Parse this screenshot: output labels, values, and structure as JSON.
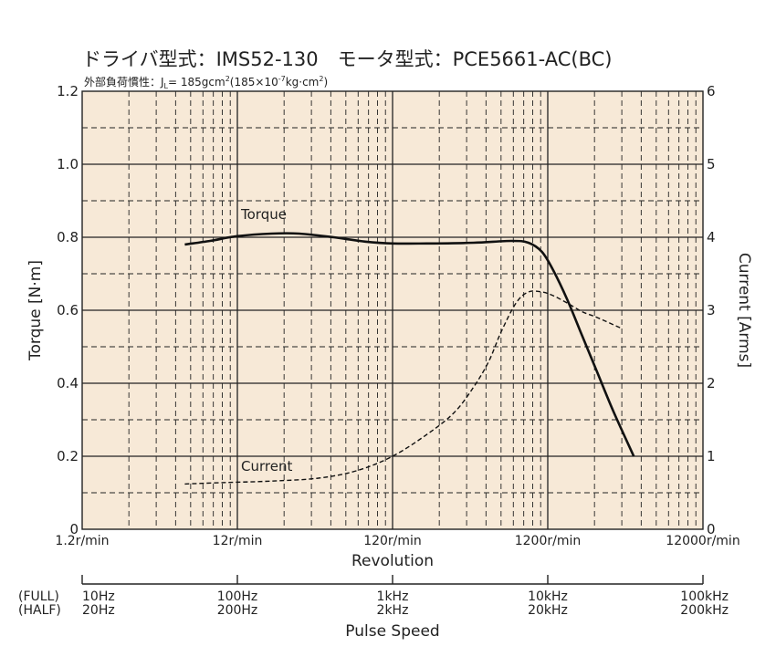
{
  "chart_data": {
    "type": "line",
    "title": "ドライバ型式：IMS52-130　モータ型式：PCE5661-AC(BC)",
    "subtitle": "外部負荷慣性：J",
    "subtitle_sub": "L",
    "subtitle_rest": "= 185gcm",
    "subtitle_sup": "2",
    "subtitle_rest2": "(185×10",
    "subtitle_sup2": "-7",
    "subtitle_rest3": "kg·cm",
    "subtitle_sup3": "2",
    "subtitle_rest4": ")",
    "x_scale": "log",
    "xlabel": "Revolution",
    "x_ticks": [
      1.2,
      12,
      120,
      1200,
      12000
    ],
    "x_tick_labels": [
      "1.2r/min",
      "12r/min",
      "120r/min",
      "1200r/min",
      "12000r/min"
    ],
    "xlim": [
      1.2,
      12000
    ],
    "ylabel_left": "Torque [N·m]",
    "ylim_left": [
      0,
      1.2
    ],
    "y_ticks_left": [
      "0",
      "0.2",
      "0.4",
      "0.6",
      "0.8",
      "1.0",
      "1.2"
    ],
    "ylabel_right": "Current [Arms]",
    "ylim_right": [
      0,
      6
    ],
    "y_ticks_right": [
      "0",
      "1",
      "2",
      "3",
      "4",
      "5",
      "6"
    ],
    "grid": true,
    "background": "#f7e9d7",
    "series": [
      {
        "name": "Torque",
        "axis": "left",
        "style": "solid",
        "x": [
          5.5,
          8,
          12,
          20,
          30,
          50,
          80,
          120,
          200,
          400,
          700,
          900,
          1100,
          1300,
          1600,
          2000,
          2500,
          3200,
          4300
        ],
        "values": [
          0.78,
          0.79,
          0.803,
          0.81,
          0.81,
          0.8,
          0.788,
          0.783,
          0.783,
          0.785,
          0.79,
          0.785,
          0.76,
          0.71,
          0.63,
          0.53,
          0.43,
          0.32,
          0.2
        ]
      },
      {
        "name": "Current",
        "axis": "right",
        "style": "dashed",
        "x": [
          5.5,
          10,
          20,
          40,
          70,
          120,
          200,
          300,
          400,
          500,
          600,
          750,
          900,
          1100,
          1300,
          1600,
          2000,
          2500,
          3600
        ],
        "values": [
          0.62,
          0.64,
          0.66,
          0.7,
          0.8,
          1.0,
          1.3,
          1.6,
          1.95,
          2.3,
          2.7,
          3.1,
          3.25,
          3.25,
          3.2,
          3.1,
          2.98,
          2.9,
          2.75
        ]
      }
    ],
    "annotations": [
      "Torque",
      "Current"
    ]
  },
  "pulse_axis": {
    "label": "Pulse Speed",
    "full_label": "(FULL)",
    "half_label": "(HALF)",
    "full_ticks": [
      "10Hz",
      "100Hz",
      "1kHz",
      "10kHz",
      "100kHz"
    ],
    "half_ticks": [
      "20Hz",
      "200Hz",
      "2kHz",
      "20kHz",
      "200kHz"
    ]
  }
}
